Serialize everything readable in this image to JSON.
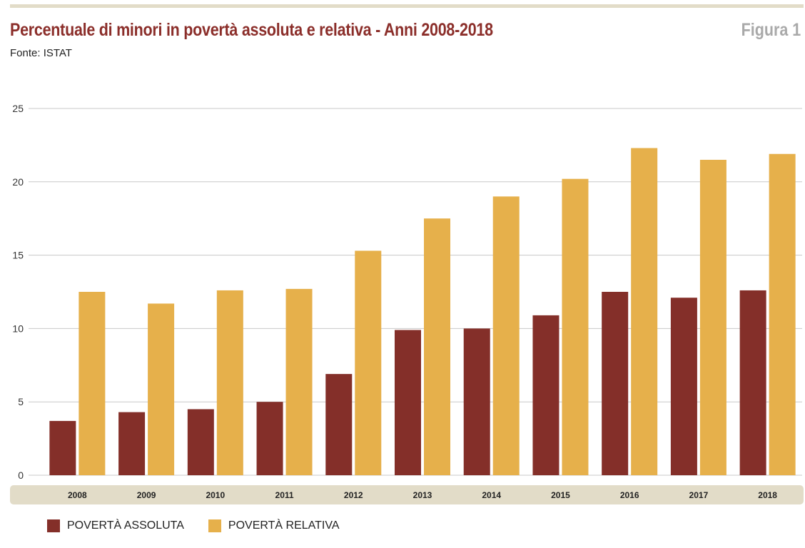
{
  "header": {
    "title": "Percentuale di minori in povertà assoluta e relativa - Anni 2008-2018",
    "figure_label": "Figura 1",
    "source": "Fonte: ISTAT"
  },
  "colors": {
    "assoluta": "#842f29",
    "relativa": "#e6b04b",
    "axis_band": "#e2dcc8",
    "grid": "#c8c8c8"
  },
  "chart_data": {
    "type": "bar",
    "title": "Percentuale di minori in povertà assoluta e relativa - Anni 2008-2018",
    "xlabel": "",
    "ylabel": "",
    "ylim": [
      0,
      25
    ],
    "yticks": [
      0,
      5,
      10,
      15,
      20,
      25
    ],
    "grid": true,
    "legend_position": "bottom-left",
    "categories": [
      "2008",
      "2009",
      "2010",
      "2011",
      "2012",
      "2013",
      "2014",
      "2015",
      "2016",
      "2017",
      "2018"
    ],
    "series": [
      {
        "name": "POVERTÀ ASSOLUTA",
        "values": [
          3.7,
          4.3,
          4.5,
          5.0,
          6.9,
          9.9,
          10.0,
          10.9,
          12.5,
          12.1,
          12.6
        ]
      },
      {
        "name": "POVERTÀ RELATIVA",
        "values": [
          12.5,
          11.7,
          12.6,
          12.7,
          15.3,
          17.5,
          19.0,
          20.2,
          22.3,
          21.5,
          21.9
        ]
      }
    ]
  }
}
